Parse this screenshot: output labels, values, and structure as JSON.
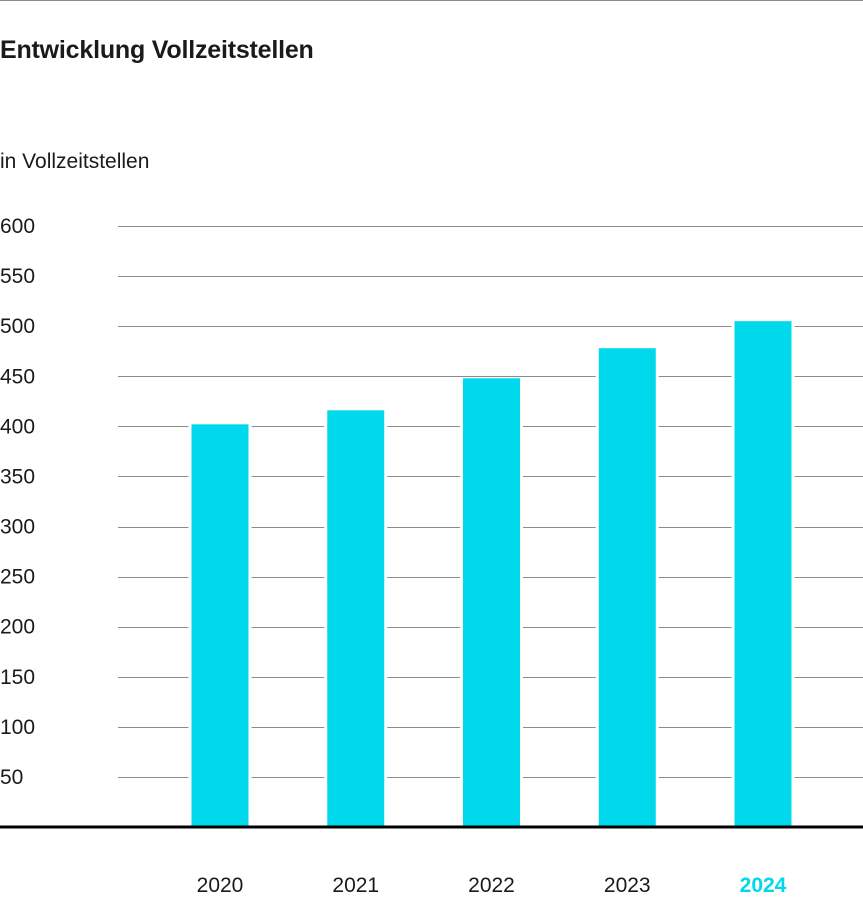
{
  "chart_data": {
    "type": "bar",
    "title": "Entwicklung Vollzeitstellen",
    "ylabel": "in Vollzeitstellen",
    "xlabel": "",
    "categories": [
      "2020",
      "2021",
      "2022",
      "2023",
      "2024"
    ],
    "values": [
      402,
      416,
      448,
      478,
      505
    ],
    "ylim": [
      0,
      600
    ],
    "yticks": [
      50,
      100,
      150,
      200,
      250,
      300,
      350,
      400,
      450,
      500,
      550,
      600
    ],
    "highlight_category": "2024",
    "grid": true,
    "colors": {
      "bar": "#00d9ec",
      "highlight_label": "#00d9ec",
      "grid": "#8c8c8c",
      "baseline": "#000000",
      "text": "#1a1a1a"
    }
  }
}
